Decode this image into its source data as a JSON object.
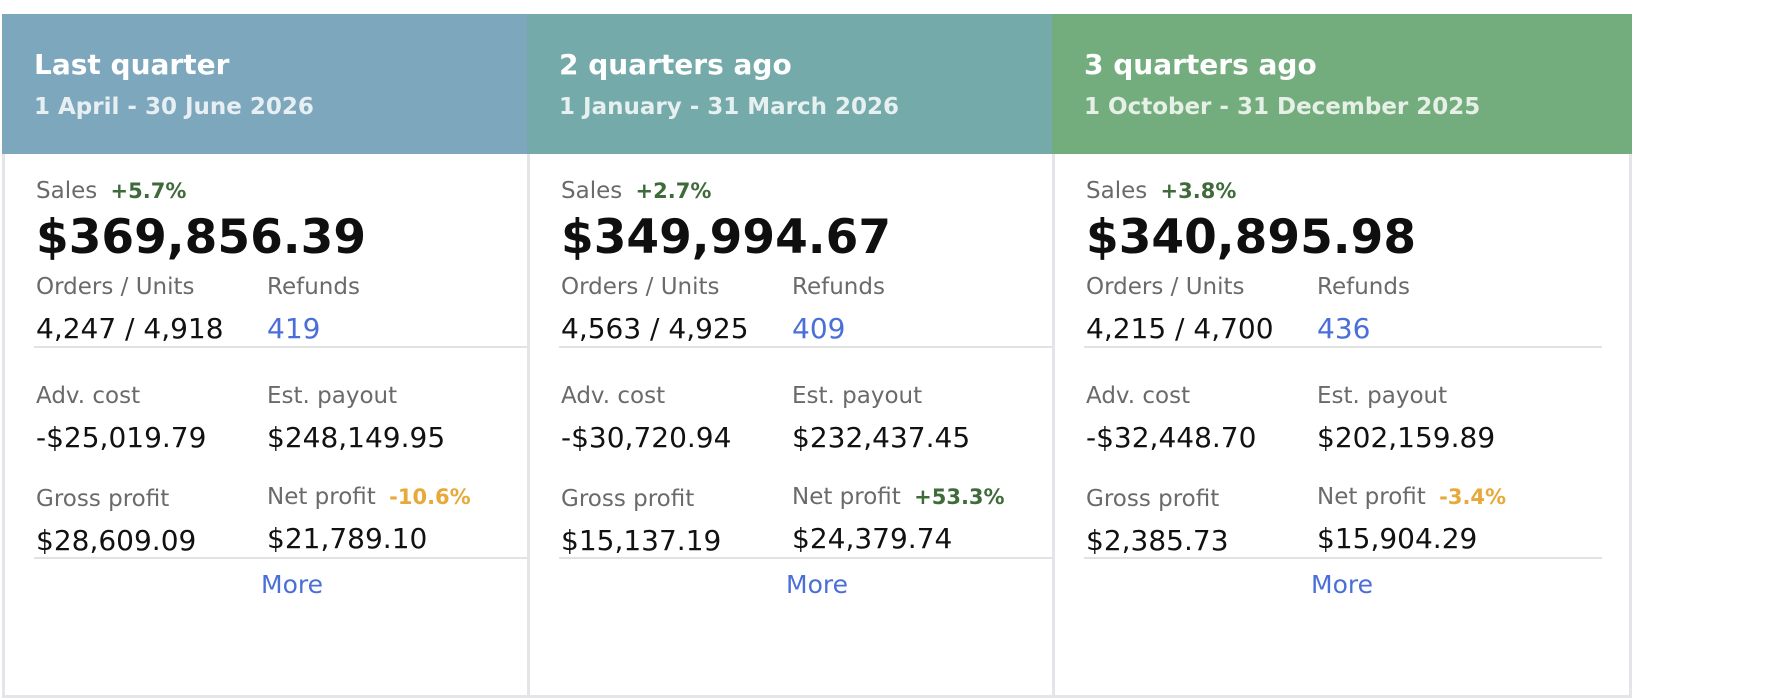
{
  "cards": [
    {
      "title": "Last quarter",
      "subtitle": "1 April - 30 June 2026",
      "header_color": "#7da7bd",
      "sales_label": "Sales",
      "sales_change": "+5.7%",
      "sales_value": "$369,856.39",
      "orders_label": "Orders / Units",
      "orders_value": "4,247 / 4,918",
      "refunds_label": "Refunds",
      "refunds_value": "419",
      "adv_label": "Adv. cost",
      "adv_value": "-$25,019.79",
      "payout_label": "Est. payout",
      "payout_value": "$248,149.95",
      "gross_label": "Gross profit",
      "gross_value": "$28,609.09",
      "net_label": "Net profit",
      "net_change": "-10.6%",
      "net_value": "$21,789.10",
      "more_label": "More"
    },
    {
      "title": "2 quarters ago",
      "subtitle": "1 January - 31 March 2026",
      "header_color": "#74aaa9",
      "sales_label": "Sales",
      "sales_change": "+2.7%",
      "sales_value": "$349,994.67",
      "orders_label": "Orders / Units",
      "orders_value": "4,563 / 4,925",
      "refunds_label": "Refunds",
      "refunds_value": "409",
      "adv_label": "Adv. cost",
      "adv_value": "-$30,720.94",
      "payout_label": "Est. payout",
      "payout_value": "$232,437.45",
      "gross_label": "Gross profit",
      "gross_value": "$15,137.19",
      "net_label": "Net profit",
      "net_change": "+53.3%",
      "net_value": "$24,379.74",
      "more_label": "More"
    },
    {
      "title": "3 quarters ago",
      "subtitle": "1 October - 31 December 2025",
      "header_color": "#74ad7d",
      "sales_label": "Sales",
      "sales_change": "+3.8%",
      "sales_value": "$340,895.98",
      "orders_label": "Orders / Units",
      "orders_value": "4,215 / 4,700",
      "refunds_label": "Refunds",
      "refunds_value": "436",
      "adv_label": "Adv. cost",
      "adv_value": "-$32,448.70",
      "payout_label": "Est. payout",
      "payout_value": "$202,159.89",
      "gross_label": "Gross profit",
      "gross_value": "$2,385.73",
      "net_label": "Net profit",
      "net_change": "-3.4%",
      "net_value": "$15,904.29",
      "more_label": "More"
    }
  ],
  "colors": {
    "positive_change": "#3f6b3a",
    "negative_change": "#e6a93a",
    "link": "#4a6fd8"
  }
}
